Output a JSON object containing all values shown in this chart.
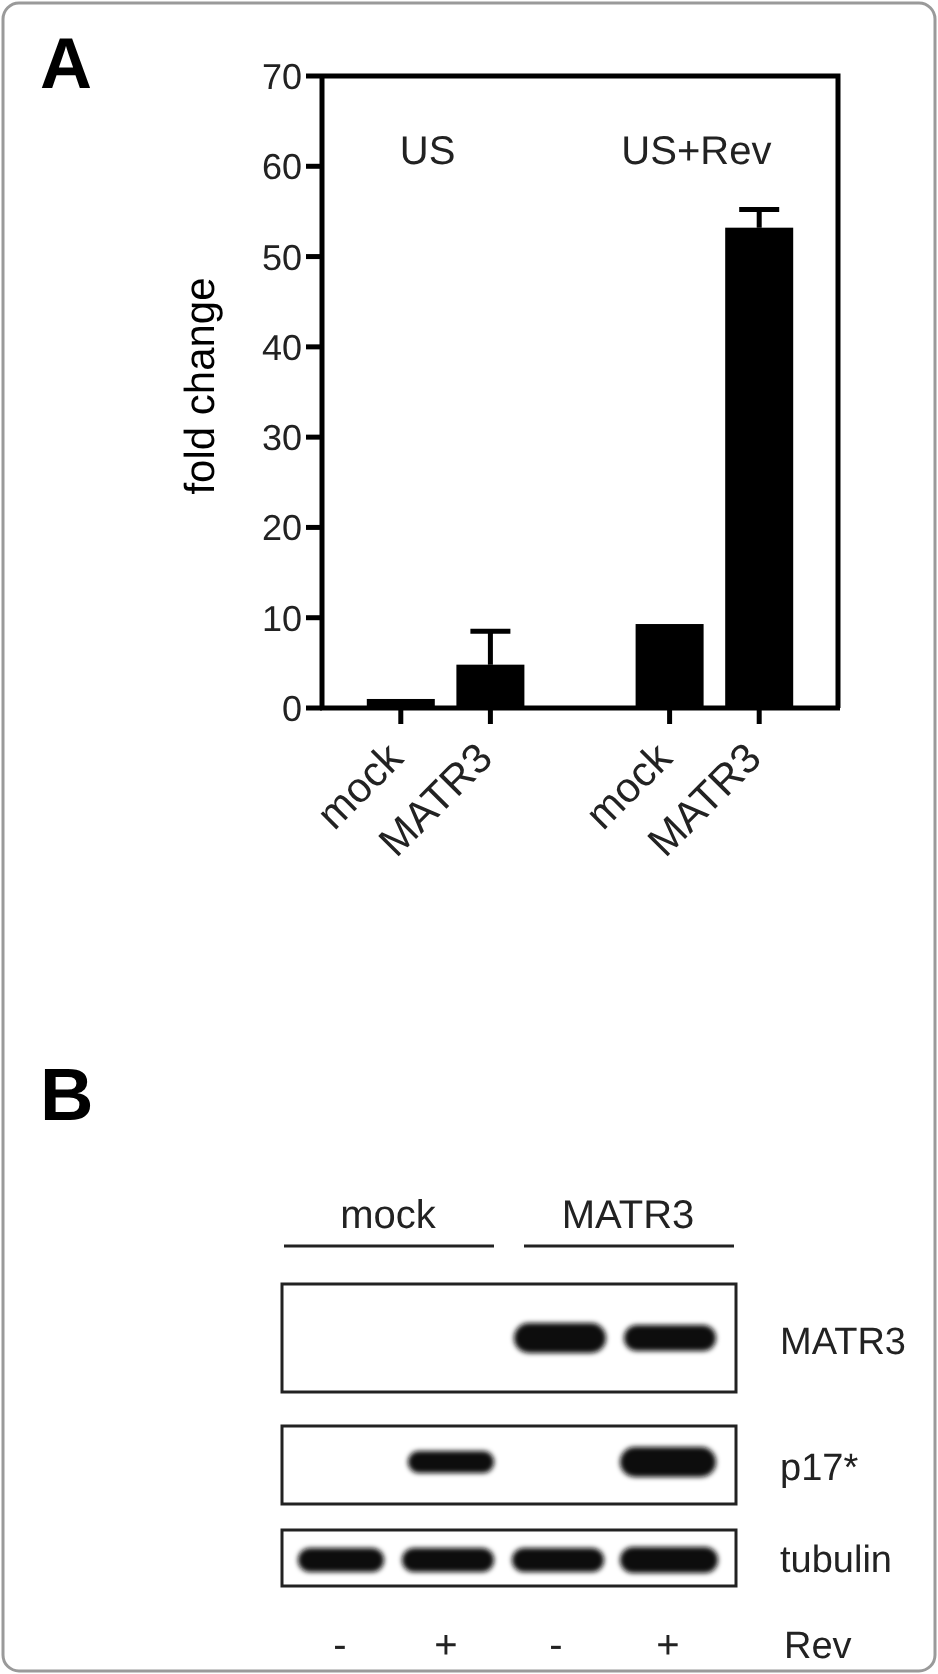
{
  "chart_data": [
    {
      "type": "bar",
      "title": "A",
      "ylabel": "fold change",
      "categories": [
        "mock",
        "MATR3",
        null,
        "mock",
        "MATR3"
      ],
      "values": [
        1,
        4.8,
        null,
        9.3,
        53.2
      ],
      "errors": [
        null,
        3.7,
        null,
        null,
        2
      ],
      "color": "#000000",
      "ylim": [
        0,
        70
      ],
      "yticks": [
        0,
        10,
        20,
        30,
        40,
        50,
        60,
        70
      ],
      "annotations": [
        "US",
        "US+Rev"
      ]
    },
    {
      "type": "other",
      "title": "B",
      "annotations": [
        "mock",
        "MATR3",
        "MATR3",
        "p17*",
        "tubulin",
        "-",
        "+",
        "-",
        "+",
        "Rev"
      ]
    }
  ]
}
